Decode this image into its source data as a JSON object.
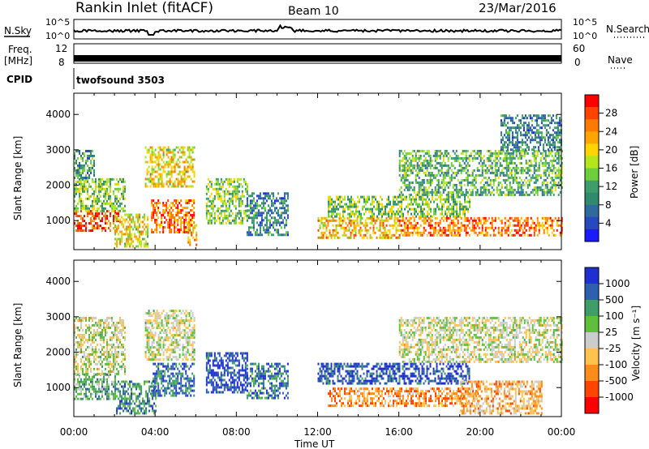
{
  "header": {
    "station": "Rankin Inlet (fitACF)",
    "beam": "Beam 10",
    "date": "23/Mar/2016"
  },
  "strip_labels": {
    "nsky": "N.Sky",
    "nsearch": "N.Search",
    "freq_line1": "Freq.",
    "freq_line2": "[MHz]",
    "nave": "Nave",
    "cpid": "CPID",
    "cpid_value": "twofsound 3503",
    "noise_ticks_left": [
      "10^5",
      "10^0"
    ],
    "noise_ticks_right": [
      "10^5",
      "10^0"
    ],
    "freq_ticks": [
      "12",
      "8"
    ],
    "nave_ticks": [
      "60",
      "0"
    ]
  },
  "axes": {
    "ylabel": "Slant Range [km]",
    "xlabel": "Time UT",
    "yticks": [
      "1000",
      "2000",
      "3000",
      "4000"
    ],
    "xticks": [
      "00:00",
      "04:00",
      "08:00",
      "12:00",
      "16:00",
      "20:00",
      "00:00"
    ]
  },
  "power_colorbar": {
    "label": "Power [dB]",
    "ticks": [
      "28",
      "24",
      "20",
      "16",
      "12",
      "8",
      "4"
    ],
    "colors": [
      "#ff0000",
      "#ff4400",
      "#ff7a00",
      "#ffa500",
      "#ffd400",
      "#b5e61d",
      "#6fcf3a",
      "#3f9d6a",
      "#2f8a6e",
      "#2f6a9e",
      "#2848c0",
      "#1a1aff"
    ]
  },
  "velocity_colorbar": {
    "label": "Velocity [m s⁻¹]",
    "ticks": [
      "1000",
      "500",
      "100",
      "25",
      "-25",
      "-100",
      "-500",
      "-1000"
    ],
    "colors": [
      "#1f2fd0",
      "#2f5fb0",
      "#3f9d6a",
      "#5fbf3a",
      "#cccccc",
      "#ffc34d",
      "#ff8c1a",
      "#ff4500",
      "#ff0000"
    ]
  },
  "chart_data": {
    "type": "heatmap",
    "title": "Rankin Inlet (fitACF)",
    "xlabel": "Time UT",
    "ylabel": "Slant Range [km]",
    "xlim": [
      0,
      24
    ],
    "ylim": [
      180,
      4600
    ],
    "panels": [
      {
        "name": "Power [dB]",
        "clim": [
          0,
          30
        ],
        "regions": [
          {
            "t0": 0.0,
            "t1": 2.2,
            "r0": 700,
            "r1": 1300,
            "value": 26
          },
          {
            "t0": 0.0,
            "t1": 2.5,
            "r0": 1300,
            "r1": 2200,
            "value": 14
          },
          {
            "t0": 0.0,
            "t1": 1.0,
            "r0": 2200,
            "r1": 3000,
            "value": 10
          },
          {
            "t0": 2.0,
            "t1": 3.6,
            "r0": 300,
            "r1": 1200,
            "value": 18
          },
          {
            "t0": 3.5,
            "t1": 5.9,
            "r0": 2000,
            "r1": 3100,
            "value": 18
          },
          {
            "t0": 3.8,
            "t1": 5.9,
            "r0": 700,
            "r1": 1600,
            "value": 24
          },
          {
            "t0": 5.6,
            "t1": 6.0,
            "r0": 300,
            "r1": 900,
            "value": 22
          },
          {
            "t0": 6.5,
            "t1": 8.5,
            "r0": 900,
            "r1": 2200,
            "value": 14
          },
          {
            "t0": 8.5,
            "t1": 10.5,
            "r0": 600,
            "r1": 1800,
            "value": 8
          },
          {
            "t0": 12.0,
            "t1": 16.0,
            "r0": 500,
            "r1": 1100,
            "value": 20
          },
          {
            "t0": 12.5,
            "t1": 19.5,
            "r0": 1100,
            "r1": 1700,
            "value": 14
          },
          {
            "t0": 16.0,
            "t1": 24.0,
            "r0": 600,
            "r1": 1100,
            "value": 24
          },
          {
            "t0": 16.0,
            "t1": 24.0,
            "r0": 1700,
            "r1": 3000,
            "value": 12
          },
          {
            "t0": 21.0,
            "t1": 24.0,
            "r0": 3000,
            "r1": 4000,
            "value": 8
          }
        ]
      },
      {
        "name": "Velocity [m s⁻¹]",
        "clim": [
          -1000,
          1000
        ],
        "regions": [
          {
            "t0": 0.0,
            "t1": 2.0,
            "r0": 700,
            "r1": 1400,
            "value": 300
          },
          {
            "t0": 0.0,
            "t1": 2.5,
            "r0": 1400,
            "r1": 3000,
            "value": 0
          },
          {
            "t0": 2.0,
            "t1": 4.0,
            "r0": 300,
            "r1": 1200,
            "value": 500
          },
          {
            "t0": 3.5,
            "t1": 5.9,
            "r0": 1800,
            "r1": 3200,
            "value": 0
          },
          {
            "t0": 3.8,
            "t1": 5.9,
            "r0": 800,
            "r1": 1700,
            "value": 600
          },
          {
            "t0": 6.5,
            "t1": 8.5,
            "r0": 900,
            "r1": 2000,
            "value": 800
          },
          {
            "t0": 8.5,
            "t1": 10.5,
            "r0": 700,
            "r1": 1700,
            "value": 600
          },
          {
            "t0": 12.0,
            "t1": 19.5,
            "r0": 1100,
            "r1": 1700,
            "value": 800
          },
          {
            "t0": 12.5,
            "t1": 20.0,
            "r0": 500,
            "r1": 1000,
            "value": -400
          },
          {
            "t0": 19.0,
            "t1": 23.0,
            "r0": 300,
            "r1": 1200,
            "value": -300
          },
          {
            "t0": 16.0,
            "t1": 24.0,
            "r0": 1700,
            "r1": 3000,
            "value": 0
          }
        ]
      }
    ]
  }
}
